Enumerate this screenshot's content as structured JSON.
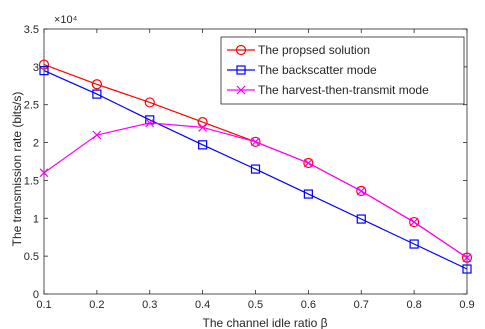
{
  "chart_data": {
    "type": "line",
    "xlabel": "The channel idle ratio β",
    "ylabel": "The transmission rate (bits/s)",
    "y_exponent_label": "×10⁴",
    "xlim": [
      0.1,
      0.9
    ],
    "ylim": [
      0,
      3.5
    ],
    "x_ticks": [
      "0.1",
      "0.2",
      "0.3",
      "0.4",
      "0.5",
      "0.6",
      "0.7",
      "0.8",
      "0.9"
    ],
    "y_ticks": [
      "0",
      "0.5",
      "1",
      "1.5",
      "2",
      "2.5",
      "3",
      "3.5"
    ],
    "x": [
      0.1,
      0.2,
      0.3,
      0.4,
      0.5,
      0.6,
      0.7,
      0.8,
      0.9
    ],
    "grid": false,
    "legend_position": "top-right",
    "series": [
      {
        "name": "The propsed solution",
        "color": "#ff0000",
        "marker": "circle",
        "values": [
          3.03,
          2.77,
          2.53,
          2.27,
          2.01,
          1.73,
          1.36,
          0.95,
          0.48
        ]
      },
      {
        "name": "The backscatter mode",
        "color": "#0000ff",
        "marker": "square",
        "values": [
          2.95,
          2.64,
          2.3,
          1.97,
          1.65,
          1.32,
          0.99,
          0.66,
          0.33
        ]
      },
      {
        "name": "The harvest-then-transmit mode",
        "color": "#ff00ff",
        "marker": "x",
        "values": [
          1.6,
          2.1,
          2.26,
          2.2,
          2.01,
          1.73,
          1.36,
          0.95,
          0.48
        ]
      }
    ]
  }
}
